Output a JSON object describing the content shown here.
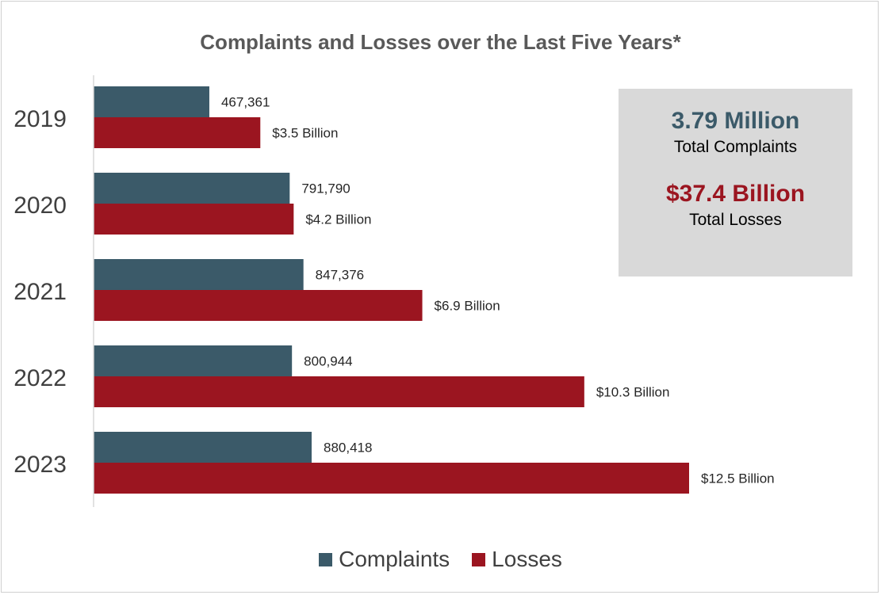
{
  "chart_data": {
    "type": "bar",
    "orientation": "horizontal",
    "title": "Complaints and Losses over the Last Five Years*",
    "categories": [
      "2019",
      "2020",
      "2021",
      "2022",
      "2023"
    ],
    "series": [
      {
        "name": "Complaints",
        "color": "#3b5a69",
        "values": [
          467361,
          791790,
          847376,
          800944,
          880418
        ],
        "labels": [
          "467,361",
          "791,790",
          "847,376",
          "800,944",
          "880,418"
        ]
      },
      {
        "name": "Losses",
        "color": "#9b1520",
        "values": [
          3.5,
          4.2,
          6.9,
          10.3,
          12.5
        ],
        "labels": [
          "$3.5 Billion",
          "$4.2 Billion",
          "$6.9 Billion",
          "$10.3 Billion",
          "$12.5 Billion"
        ]
      }
    ],
    "grid": false,
    "legend_position": "bottom"
  },
  "summary": {
    "complaints_value": "3.79 Million",
    "complaints_label": "Total Complaints",
    "losses_value": "$37.4 Billion",
    "losses_label": "Total Losses",
    "complaints_color": "#3b5a69",
    "losses_color": "#9b1520"
  }
}
